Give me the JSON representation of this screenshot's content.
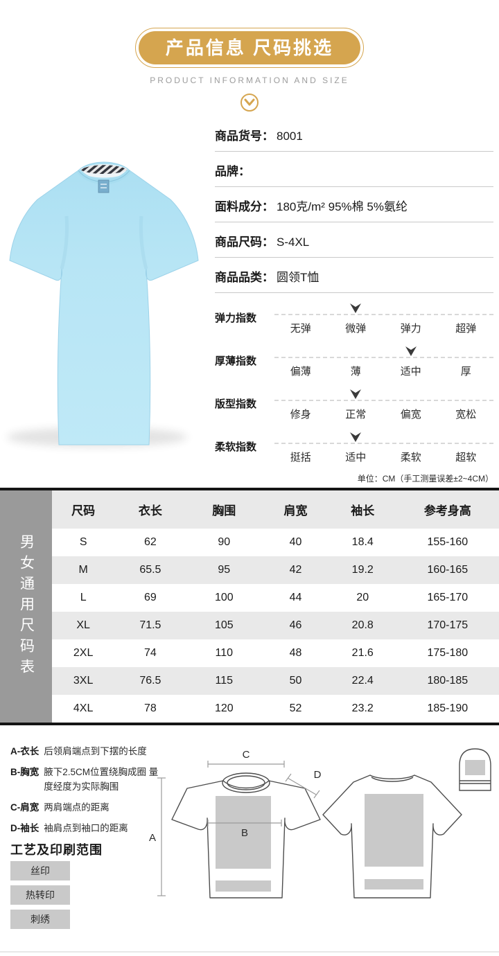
{
  "header": {
    "title": "产品信息 尺码挑选",
    "subtitle": "PRODUCT INFORMATION AND SIZE",
    "accent_color": "#d5a54f"
  },
  "product_info": {
    "rows": [
      {
        "label": "商品货号：",
        "value": "8001"
      },
      {
        "label": "品牌：",
        "value": ""
      },
      {
        "label": "面料成分：",
        "value": "180克/m² 95%棉 5%氨纶"
      },
      {
        "label": "商品尺码：",
        "value": "S-4XL"
      },
      {
        "label": "商品品类：",
        "value": "圆领T恤"
      }
    ]
  },
  "indexes": [
    {
      "label": "弹力指数",
      "options": [
        "无弹",
        "微弹",
        "弹力",
        "超弹"
      ],
      "selected_index": 1
    },
    {
      "label": "厚薄指数",
      "options": [
        "偏薄",
        "薄",
        "适中",
        "厚"
      ],
      "selected_index": 2
    },
    {
      "label": "版型指数",
      "options": [
        "修身",
        "正常",
        "偏宽",
        "宽松"
      ],
      "selected_index": 1
    },
    {
      "label": "柔软指数",
      "options": [
        "挺括",
        "适中",
        "柔软",
        "超软"
      ],
      "selected_index": 1
    }
  ],
  "unit_note": "单位：CM（手工测量误差±2~4CM）",
  "size_table": {
    "side_label": "男女通用尺码表",
    "headers": [
      "尺码",
      "衣长",
      "胸围",
      "肩宽",
      "袖长",
      "参考身高"
    ],
    "rows": [
      [
        "S",
        "62",
        "90",
        "40",
        "18.4",
        "155-160"
      ],
      [
        "M",
        "65.5",
        "95",
        "42",
        "19.2",
        "160-165"
      ],
      [
        "L",
        "69",
        "100",
        "44",
        "20",
        "165-170"
      ],
      [
        "XL",
        "71.5",
        "105",
        "46",
        "20.8",
        "170-175"
      ],
      [
        "2XL",
        "74",
        "110",
        "48",
        "21.6",
        "175-180"
      ],
      [
        "3XL",
        "76.5",
        "115",
        "50",
        "22.4",
        "180-185"
      ],
      [
        "4XL",
        "78",
        "120",
        "52",
        "23.2",
        "185-190"
      ]
    ]
  },
  "measure_notes": [
    {
      "label": "A-衣长",
      "desc": "后领肩端点到下摆的长度"
    },
    {
      "label": "B-胸宽",
      "desc": "腋下2.5CM位置绕胸成圈 量度经度为实际胸围"
    },
    {
      "label": "C-肩宽",
      "desc": "两肩端点的距离"
    },
    {
      "label": "D-袖长",
      "desc": "袖肩点到袖口的距离"
    }
  ],
  "craft": {
    "title": "工艺及印刷范围",
    "buttons": [
      "丝印",
      "热转印",
      "刺绣"
    ]
  },
  "diagram_labels": {
    "a": "A",
    "b": "B",
    "c": "C",
    "d": "D"
  }
}
